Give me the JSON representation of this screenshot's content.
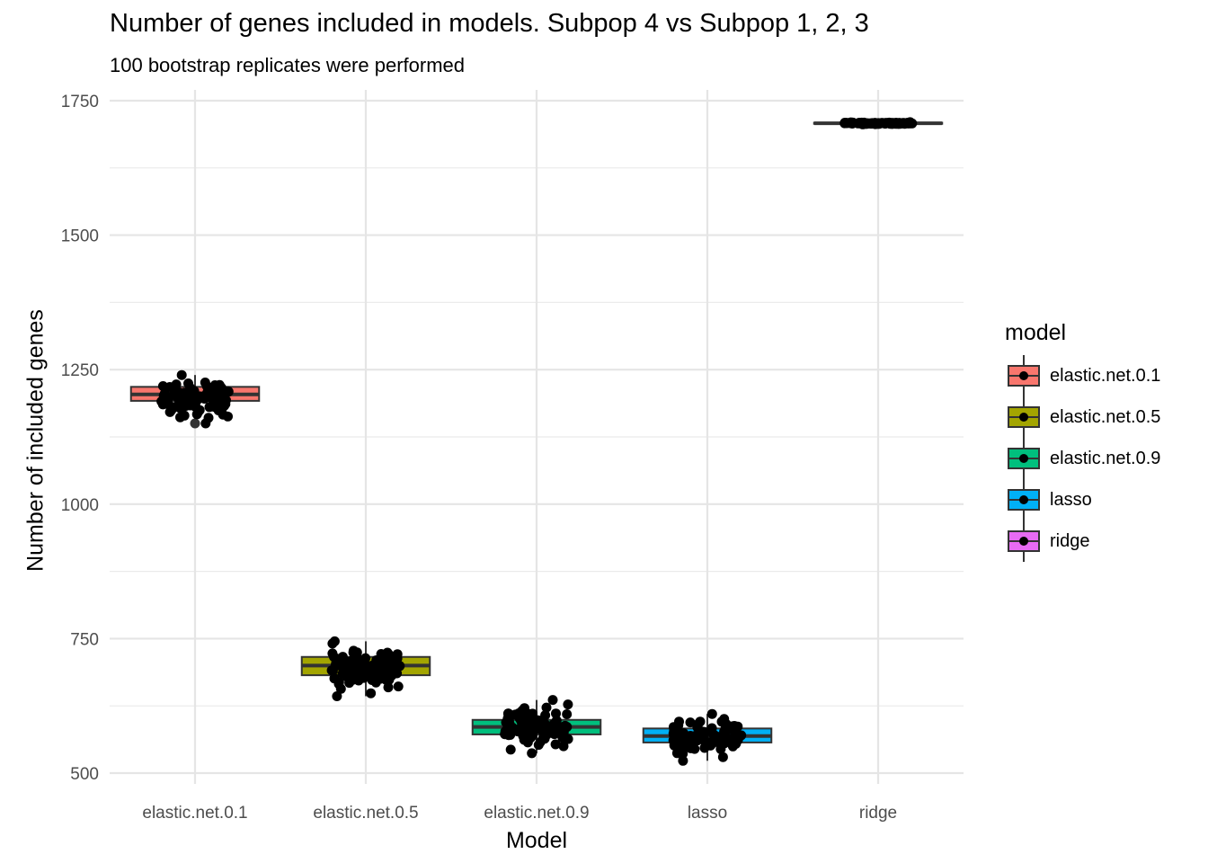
{
  "chart_data": {
    "type": "boxplot",
    "title": "Number of genes included in models. Subpop 4 vs Subpop 1, 2, 3",
    "subtitle": "100 bootstrap replicates were performed",
    "xlabel": "Model",
    "ylabel": "Number of included genes",
    "ylim": [
      480,
      1770
    ],
    "yticks": [
      500,
      750,
      1000,
      1250,
      1500,
      1750
    ],
    "grid": true,
    "legend": {
      "title": "model",
      "position": "right"
    },
    "categories": [
      "elastic.net.0.1",
      "elastic.net.0.5",
      "elastic.net.0.9",
      "lasso",
      "ridge"
    ],
    "colors": [
      "#F8766D",
      "#A3A500",
      "#00BF7D",
      "#00B0F6",
      "#E76BF3"
    ],
    "boxes": [
      {
        "name": "elastic.net.0.1",
        "min": 1150,
        "q1": 1192,
        "median": 1204,
        "q3": 1218,
        "max": 1240,
        "outliers": [
          1150
        ]
      },
      {
        "name": "elastic.net.0.5",
        "min": 643,
        "q1": 682,
        "median": 700,
        "q3": 716,
        "max": 745,
        "outliers": []
      },
      {
        "name": "elastic.net.0.9",
        "min": 537,
        "q1": 572,
        "median": 586,
        "q3": 599,
        "max": 636,
        "outliers": []
      },
      {
        "name": "lasso",
        "min": 523,
        "q1": 557,
        "median": 569,
        "q3": 583,
        "max": 610,
        "outliers": []
      },
      {
        "name": "ridge",
        "min": 1706,
        "q1": 1707,
        "median": 1708,
        "q3": 1709,
        "max": 1710,
        "outliers": []
      }
    ],
    "jitter_points": [
      {
        "name": "elastic.net.0.1",
        "n": 100,
        "min": 1150,
        "max": 1240,
        "spread": 0.4
      },
      {
        "name": "elastic.net.0.5",
        "n": 100,
        "min": 643,
        "max": 745,
        "spread": 0.4
      },
      {
        "name": "elastic.net.0.9",
        "n": 100,
        "min": 537,
        "max": 636,
        "spread": 0.4
      },
      {
        "name": "lasso",
        "n": 100,
        "min": 523,
        "max": 610,
        "spread": 0.4
      },
      {
        "name": "ridge",
        "n": 100,
        "min": 1706,
        "max": 1710,
        "spread": 0.4
      }
    ]
  }
}
